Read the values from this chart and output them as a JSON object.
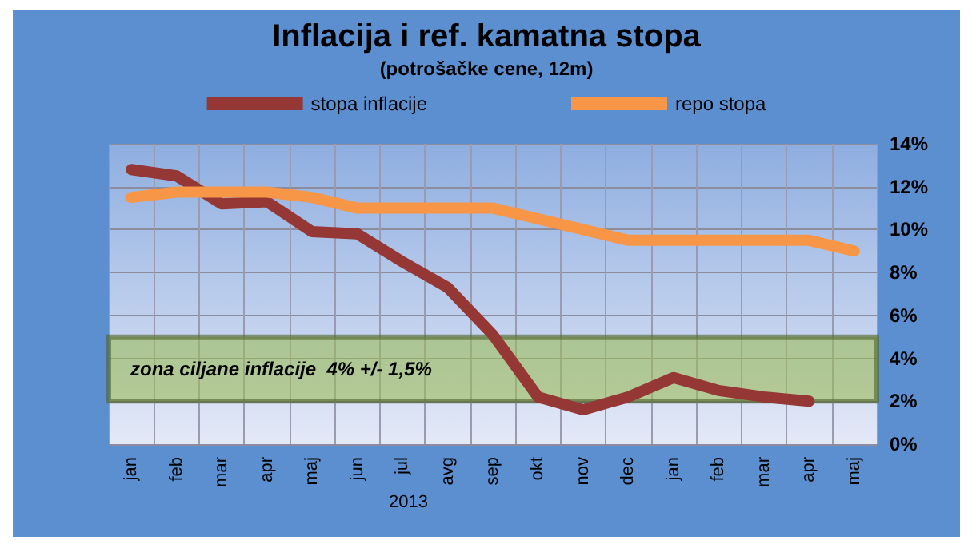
{
  "chart_data": {
    "type": "line",
    "title": "Inflacija i ref. kamatna stopa",
    "subtitle": "(potrošačke cene, 12m)",
    "categories": [
      "jan",
      "feb",
      "mar",
      "apr",
      "maj",
      "jun",
      "jul",
      "avg",
      "sep",
      "okt",
      "nov",
      "dec",
      "jan",
      "feb",
      "mar",
      "apr",
      "maj"
    ],
    "series": [
      {
        "name": "stopa inflacije",
        "color": "#953735",
        "values": [
          12.8,
          12.5,
          11.2,
          11.3,
          9.9,
          9.8,
          8.5,
          7.3,
          5.1,
          2.2,
          1.6,
          2.2,
          3.1,
          2.5,
          2.2,
          2.0,
          null
        ]
      },
      {
        "name": "repo stopa",
        "color": "#f79646",
        "values": [
          11.5,
          11.75,
          11.75,
          11.75,
          11.5,
          11.0,
          11.0,
          11.0,
          11.0,
          10.5,
          10.0,
          9.5,
          9.5,
          9.5,
          9.5,
          9.5,
          9.0
        ]
      }
    ],
    "ylim": [
      0,
      14
    ],
    "yticks": [
      {
        "value": 0,
        "label": "0%"
      },
      {
        "value": 2,
        "label": "2%"
      },
      {
        "value": 4,
        "label": "4%"
      },
      {
        "value": 6,
        "label": "6%"
      },
      {
        "value": 8,
        "label": "8%"
      },
      {
        "value": 10,
        "label": "10%"
      },
      {
        "value": 12,
        "label": "12%"
      },
      {
        "value": 14,
        "label": "14%"
      }
    ],
    "bands": [
      {
        "axis": "y",
        "from": 2,
        "to": 5,
        "label": "zona ciljane inflacije  4% +/- 1,5%",
        "color": "#9bbb59"
      }
    ],
    "annotations": [
      "2013"
    ],
    "grid": true,
    "legend": "top",
    "line_style": "solid",
    "marker": "none"
  }
}
